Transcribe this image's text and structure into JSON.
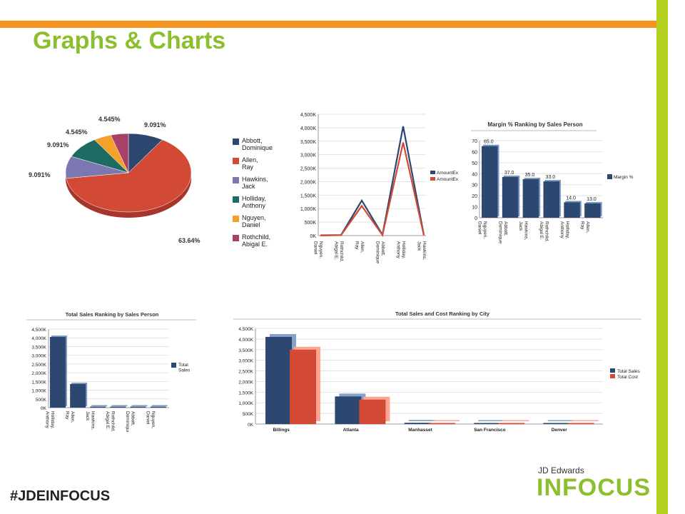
{
  "page": {
    "title": "Graphs & Charts",
    "hashtag": "#JDEINFOCUS",
    "brand_small": "JD Edwards",
    "brand_large": "INFOCUS"
  },
  "colors": {
    "orange": "#f7941d",
    "green": "#b5cf1d",
    "navy": "#2a4a7a",
    "red": "#d94a35"
  },
  "chart_data": [
    {
      "type": "pie",
      "title": "",
      "labels": [
        "Abbott, Dominique",
        "Allen, Ray",
        "Hawkins, Jack",
        "Holliday, Anthony",
        "Nguyen, Daniel",
        "Rothchild, Abigal E."
      ],
      "values": [
        9.091,
        63.64,
        9.091,
        9.091,
        4.545,
        4.545
      ],
      "value_labels": [
        "9.091%",
        "63.64%",
        "9.091%",
        "9.091%",
        "4.545%",
        "4.545%"
      ],
      "colors": [
        "#2c4770",
        "#d24a36",
        "#7b77b0",
        "#1e6b63",
        "#f5a02a",
        "#a84068"
      ],
      "legend": "right"
    },
    {
      "type": "line",
      "title": "",
      "categories": [
        "Nguyen, Daniel",
        "Rothchild, Abigal E.",
        "Allen, Ray",
        "Abbott, Dominique",
        "Holliday, Anthony",
        "Hawkins, Jack"
      ],
      "series": [
        {
          "name": "AmountEx",
          "values": [
            10000,
            20000,
            1300000,
            30000,
            4050000,
            20000
          ],
          "color": "#2c4770"
        },
        {
          "name": "AmountEx",
          "values": [
            5000,
            15000,
            1100000,
            20000,
            3450000,
            15000
          ],
          "color": "#d24a36"
        }
      ],
      "ylim": [
        0,
        4500000
      ],
      "ytick_labels": [
        "0K",
        "500K",
        "1,000K",
        "1,500K",
        "2,000K",
        "2,500K",
        "3,000K",
        "3,500K",
        "4,000K",
        "4,500K"
      ],
      "legend": "right"
    },
    {
      "type": "bar",
      "title": "Margin % Ranking by Sales Person",
      "categories": [
        "Nguyen, Daniel",
        "Abbott, Dominique",
        "Hawkins, Jack",
        "Rothchild, Abigal E.",
        "Holliday, Anthony",
        "Allen, Ray"
      ],
      "series": [
        {
          "name": "Margin %",
          "values": [
            65.0,
            37.0,
            35.0,
            33.0,
            14.0,
            13.0
          ],
          "color": "#2c4770"
        }
      ],
      "data_labels": [
        "65.0",
        "37.0",
        "35.0",
        "33.0",
        "14.0",
        "13.0"
      ],
      "ylim": [
        0,
        70
      ],
      "ytick_labels": [
        "0",
        "10",
        "20",
        "30",
        "40",
        "50",
        "60",
        "70"
      ],
      "legend": "right"
    },
    {
      "type": "bar",
      "title": "Total Sales Ranking by Sales Person",
      "categories": [
        "Holliday, Anthony",
        "Allen, Ray",
        "Hawkins, Jack",
        "Rothchild, Abigal E.",
        "Abbott, Dominique",
        "Nguyen, Daniel"
      ],
      "series": [
        {
          "name": "Total Sales",
          "values": [
            4050000,
            1350000,
            40000,
            30000,
            20000,
            10000
          ],
          "color": "#2c4770"
        }
      ],
      "ylim": [
        0,
        4500000
      ],
      "ytick_labels": [
        "0K",
        "500K",
        "1,000K",
        "1,500K",
        "2,000K",
        "2,500K",
        "3,000K",
        "3,500K",
        "4,000K",
        "4,500K"
      ],
      "legend": "right"
    },
    {
      "type": "bar",
      "title": "Total Sales and Cost Ranking by City",
      "categories": [
        "Billings",
        "Atlanta",
        "Manhasset",
        "San Francisco",
        "Denver"
      ],
      "series": [
        {
          "name": "Total Sales",
          "values": [
            4100000,
            1300000,
            60000,
            30000,
            20000
          ],
          "color": "#2c4770"
        },
        {
          "name": "Total Cost",
          "values": [
            3500000,
            1150000,
            50000,
            25000,
            15000
          ],
          "color": "#d24a36"
        }
      ],
      "ylim": [
        0,
        4500000
      ],
      "ytick_labels": [
        "0K",
        "500K",
        "1,000K",
        "1,500K",
        "2,000K",
        "2,500K",
        "3,000K",
        "3,500K",
        "4,000K",
        "4,500K"
      ],
      "legend": "right"
    }
  ]
}
